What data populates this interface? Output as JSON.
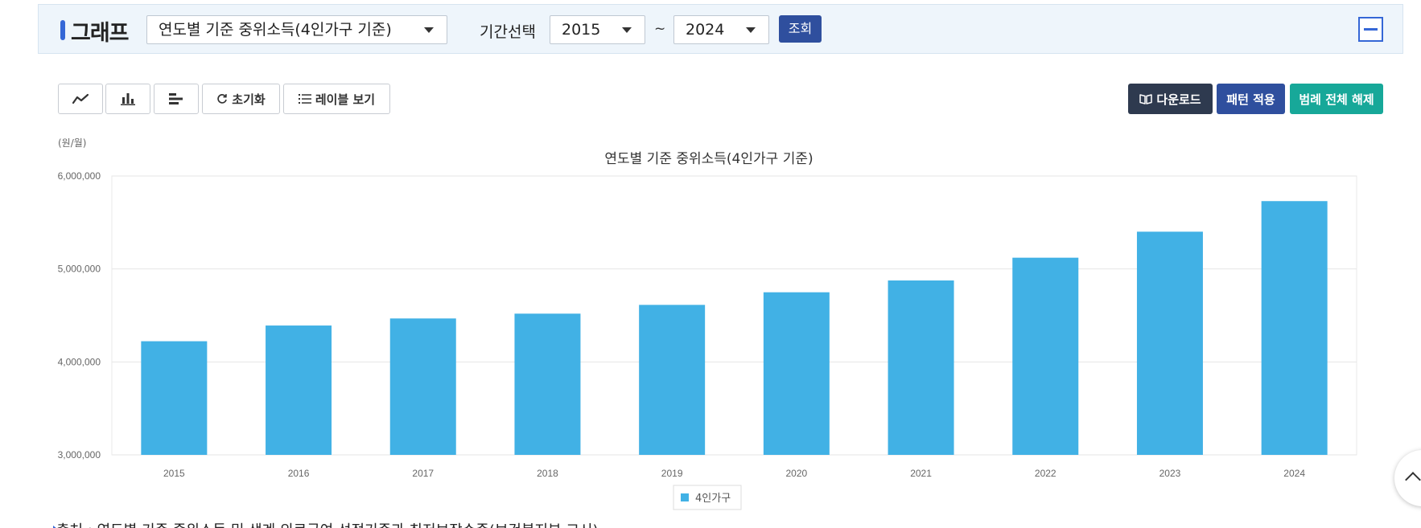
{
  "filter": {
    "title": "그래프",
    "indicator": "연도별 기준 중위소득(4인가구 기준)",
    "period_label": "기간선택",
    "from_year": "2015",
    "tilde": "~",
    "to_year": "2024",
    "query_label": "조회"
  },
  "toolbar": {
    "reset_label": "초기화",
    "label_toggle": "레이블 보기",
    "download_label": "다운로드",
    "pattern_label": "패턴 적용",
    "legend_clear_label": "범례 전체 해제"
  },
  "colors": {
    "bar": "#41b1e5",
    "accent": "#3567d6",
    "download_bg": "#2e3a4f",
    "pattern_bg": "#2f4f9e",
    "legend_bg": "#17a899"
  },
  "icons": [
    "line-chart-icon",
    "bar-chart-icon",
    "horizontal-bar-chart-icon",
    "refresh-icon",
    "list-icon",
    "book-icon"
  ],
  "chart_data": {
    "type": "bar",
    "title": "연도별 기준 중위소득(4인가구 기준)",
    "unit": "(원/월)",
    "categories": [
      "2015",
      "2016",
      "2017",
      "2018",
      "2019",
      "2020",
      "2021",
      "2022",
      "2023",
      "2024"
    ],
    "series": [
      {
        "name": "4인가구",
        "values": [
          4222533,
          4391434,
          4467380,
          4519202,
          4613536,
          4749174,
          4876290,
          5121080,
          5400964,
          5729913
        ]
      }
    ],
    "ylim": [
      3000000,
      6000000
    ],
    "yticks": [
      "3,000,000",
      "4,000,000",
      "5,000,000",
      "6,000,000"
    ],
    "ytick_values": [
      3000000,
      4000000,
      5000000,
      6000000
    ],
    "grid": true,
    "legend_position": "bottom"
  },
  "source": "출처 : 연도별 기준 중위소득 및 생계·의료급여 선정기준과 최저보장수준(보건복지부 고시)"
}
